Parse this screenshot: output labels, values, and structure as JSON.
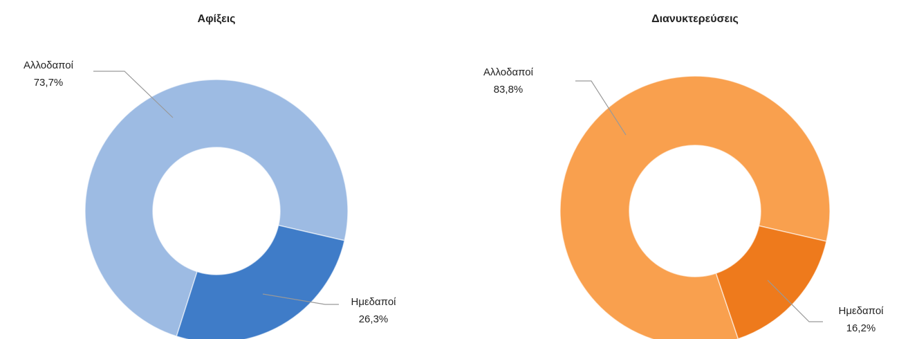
{
  "chart_data": [
    {
      "type": "donut",
      "title": "Αφίξεις",
      "categories": [
        "Αλλοδαποί",
        "Ημεδαποί"
      ],
      "values": [
        73.7,
        26.3
      ],
      "value_labels": [
        "73,7%",
        "26,3%"
      ],
      "colors": [
        "#9dbbe3",
        "#3f7cc8"
      ]
    },
    {
      "type": "donut",
      "title": "Διανυκτερεύσεις",
      "categories": [
        "Αλλοδαποί",
        "Ημεδαποί"
      ],
      "values": [
        83.8,
        16.2
      ],
      "value_labels": [
        "83,8%",
        "16,2%"
      ],
      "colors": [
        "#f9a04e",
        "#ee7a1c"
      ]
    }
  ]
}
